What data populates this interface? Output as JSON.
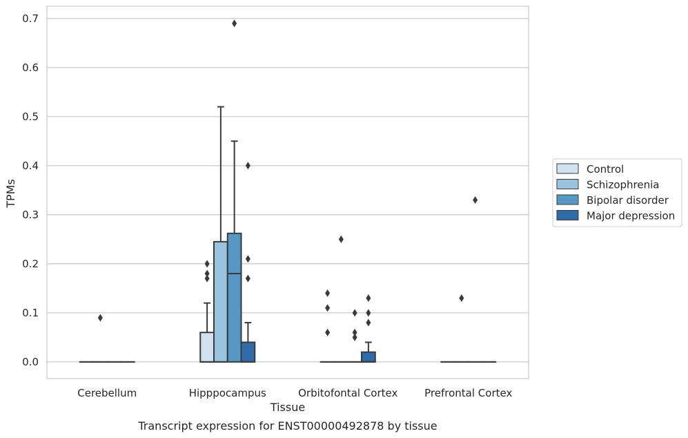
{
  "caption": "Transcript expression for ENST00000492878 by tissue",
  "chart_data": {
    "type": "box",
    "xlabel": "Tissue",
    "ylabel": "TPMs",
    "ylim": [
      -0.034,
      0.725
    ],
    "yticks": [
      0.0,
      0.1,
      0.2,
      0.3,
      0.4,
      0.5,
      0.6,
      0.7
    ],
    "ytick_labels": [
      "0.0",
      "0.1",
      "0.2",
      "0.3",
      "0.4",
      "0.5",
      "0.6",
      "0.7"
    ],
    "grid": "horizontal",
    "legend_position": "right",
    "categories": [
      "Cerebellum",
      "Hipppocampus",
      "Orbitofontal Cortex",
      "Prefrontal Cortex"
    ],
    "series": [
      {
        "name": "Control",
        "color": "#d1e1f0",
        "boxes": [
          {
            "category": "Cerebellum",
            "q1": 0.0,
            "median": 0.0,
            "q3": 0.0,
            "whisker_low": 0.0,
            "whisker_high": 0.0,
            "outliers": []
          },
          {
            "category": "Hipppocampus",
            "q1": 0.0,
            "median": 0.0,
            "q3": 0.06,
            "whisker_low": 0.0,
            "whisker_high": 0.12,
            "outliers": [
              0.17,
              0.18,
              0.2
            ]
          },
          {
            "category": "Orbitofontal Cortex",
            "q1": 0.0,
            "median": 0.0,
            "q3": 0.0,
            "whisker_low": 0.0,
            "whisker_high": 0.0,
            "outliers": [
              0.06,
              0.11,
              0.14
            ]
          },
          {
            "category": "Prefrontal Cortex",
            "q1": 0.0,
            "median": 0.0,
            "q3": 0.0,
            "whisker_low": 0.0,
            "whisker_high": 0.0,
            "outliers": []
          }
        ]
      },
      {
        "name": "Schizophrenia",
        "color": "#9ac4dd",
        "boxes": [
          {
            "category": "Cerebellum",
            "q1": 0.0,
            "median": 0.0,
            "q3": 0.0,
            "whisker_low": 0.0,
            "whisker_high": 0.0,
            "outliers": [
              0.09
            ]
          },
          {
            "category": "Hipppocampus",
            "q1": 0.0,
            "median": 0.0,
            "q3": 0.245,
            "whisker_low": 0.0,
            "whisker_high": 0.52,
            "outliers": []
          },
          {
            "category": "Orbitofontal Cortex",
            "q1": 0.0,
            "median": 0.0,
            "q3": 0.0,
            "whisker_low": 0.0,
            "whisker_high": 0.0,
            "outliers": [
              0.25
            ]
          },
          {
            "category": "Prefrontal Cortex",
            "q1": 0.0,
            "median": 0.0,
            "q3": 0.0,
            "whisker_low": 0.0,
            "whisker_high": 0.0,
            "outliers": [
              0.13
            ]
          }
        ]
      },
      {
        "name": "Bipolar disorder",
        "color": "#5697c4",
        "boxes": [
          {
            "category": "Cerebellum",
            "q1": 0.0,
            "median": 0.0,
            "q3": 0.0,
            "whisker_low": 0.0,
            "whisker_high": 0.0,
            "outliers": []
          },
          {
            "category": "Hipppocampus",
            "q1": 0.0,
            "median": 0.18,
            "q3": 0.262,
            "whisker_low": 0.0,
            "whisker_high": 0.45,
            "outliers": [
              0.69
            ]
          },
          {
            "category": "Orbitofontal Cortex",
            "q1": 0.0,
            "median": 0.0,
            "q3": 0.0,
            "whisker_low": 0.0,
            "whisker_high": 0.0,
            "outliers": [
              0.05,
              0.06,
              0.1
            ]
          },
          {
            "category": "Prefrontal Cortex",
            "q1": 0.0,
            "median": 0.0,
            "q3": 0.0,
            "whisker_low": 0.0,
            "whisker_high": 0.0,
            "outliers": [
              0.33
            ]
          }
        ]
      },
      {
        "name": "Major depression",
        "color": "#2e6ba8",
        "boxes": [
          {
            "category": "Cerebellum",
            "q1": 0.0,
            "median": 0.0,
            "q3": 0.0,
            "whisker_low": 0.0,
            "whisker_high": 0.0,
            "outliers": []
          },
          {
            "category": "Hipppocampus",
            "q1": 0.0,
            "median": 0.0,
            "q3": 0.04,
            "whisker_low": 0.0,
            "whisker_high": 0.08,
            "outliers": [
              0.17,
              0.21,
              0.4
            ]
          },
          {
            "category": "Orbitofontal Cortex",
            "q1": 0.0,
            "median": 0.0,
            "q3": 0.02,
            "whisker_low": 0.0,
            "whisker_high": 0.04,
            "outliers": [
              0.08,
              0.1,
              0.13
            ]
          },
          {
            "category": "Prefrontal Cortex",
            "q1": 0.0,
            "median": 0.0,
            "q3": 0.0,
            "whisker_low": 0.0,
            "whisker_high": 0.0,
            "outliers": []
          }
        ]
      }
    ]
  }
}
